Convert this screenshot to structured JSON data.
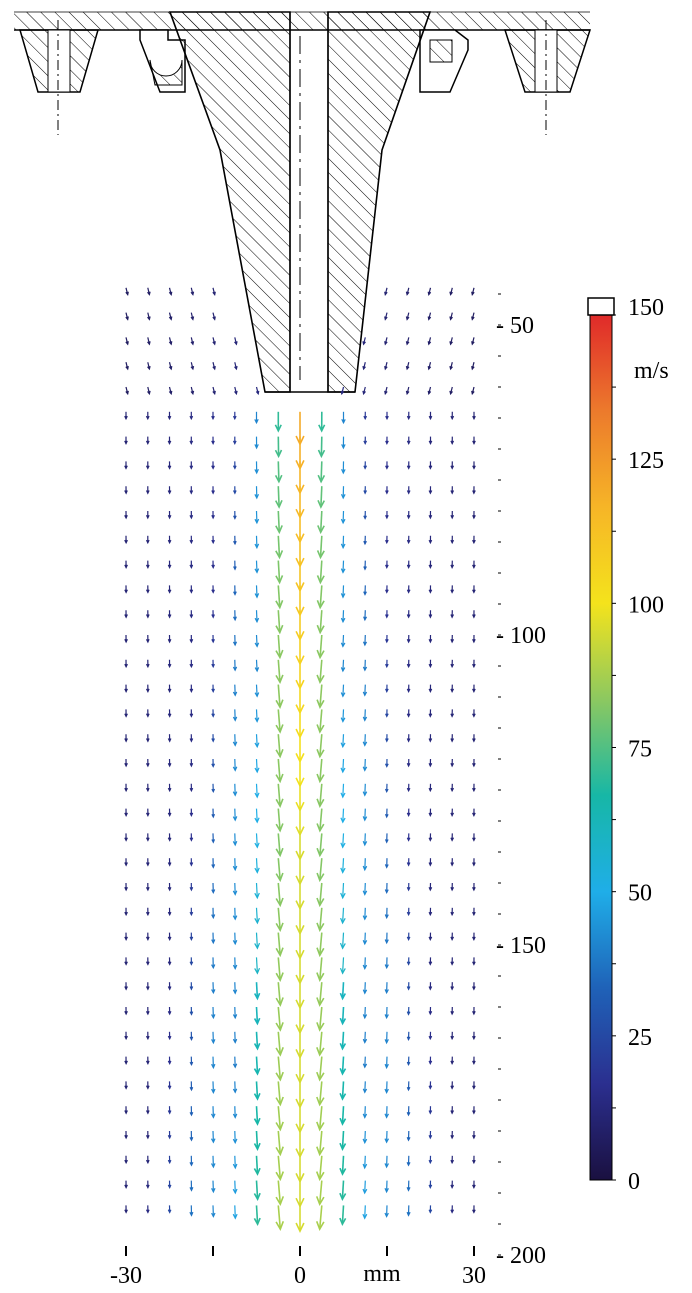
{
  "chart_data": {
    "type": "vector-field",
    "title": "",
    "x_axis": {
      "unit": "mm",
      "ticks": [
        {
          "value": -30,
          "label": "-30"
        },
        {
          "value": -15,
          "label": ""
        },
        {
          "value": 0,
          "label": "0"
        },
        {
          "value": 15,
          "label": ""
        },
        {
          "value": 30,
          "label": "30"
        }
      ],
      "range": [
        -30,
        30
      ]
    },
    "y_axis": {
      "ticks": [
        {
          "value": 50,
          "label": "- 50"
        },
        {
          "value": 100,
          "label": "- 100"
        },
        {
          "value": 150,
          "label": "- 150"
        },
        {
          "value": 200,
          "label": "- 200"
        }
      ],
      "range": [
        40,
        200
      ],
      "direction": "downward"
    },
    "colorbar": {
      "unit": "m/s",
      "min": 0,
      "max": 150,
      "ticks": [
        {
          "value": 150,
          "label": "150"
        },
        {
          "value": 125,
          "label": "125"
        },
        {
          "value": 100,
          "label": "100"
        },
        {
          "value": 75,
          "label": "75"
        },
        {
          "value": 50,
          "label": "50"
        },
        {
          "value": 25,
          "label": "25"
        },
        {
          "value": 0,
          "label": "0"
        }
      ],
      "colors": [
        "#1a1040",
        "#2b2f8f",
        "#1f62b8",
        "#1faee8",
        "#17b7a6",
        "#8cc860",
        "#f4e31c",
        "#f6b527",
        "#ec7a2c",
        "#e02a2a"
      ]
    },
    "grid": {
      "x_range": [
        -30,
        30
      ],
      "x_step": 3.75,
      "y_range": [
        44,
        192
      ],
      "y_step": 4
    },
    "nozzle_exit": {
      "x_min": -3.5,
      "x_max": 3.5,
      "y": 63
    },
    "flow_model": {
      "center_velocity_exit": 120,
      "center_velocity_far": 95,
      "jet_half_width_exit": 3.5,
      "jet_spread_rate": 0.045,
      "entrainment_velocity": 32,
      "edge_spread": 4.5
    }
  },
  "geometry": {
    "drawing": "nozzle cross-section"
  }
}
